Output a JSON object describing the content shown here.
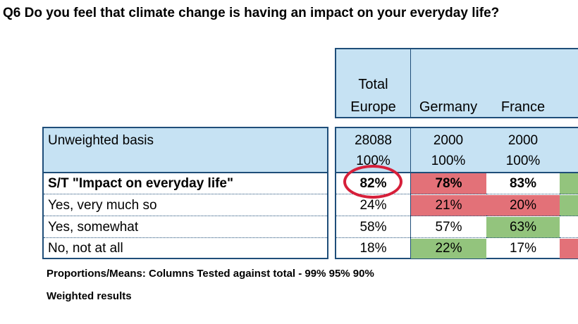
{
  "title": "Q6 Do you feel that climate change is having an impact on your everyday life?",
  "columns": [
    {
      "line1": "Total",
      "line2": "Europe"
    },
    {
      "line1": "",
      "line2": "Germany"
    },
    {
      "line1": "",
      "line2": "France"
    }
  ],
  "basis": {
    "label": "Unweighted basis",
    "counts": [
      "28088",
      "2000",
      "2000"
    ],
    "percents": [
      "100%",
      "100%",
      "100%"
    ]
  },
  "rows": [
    {
      "label": "S/T \"Impact on everyday life\"",
      "values": [
        "82%",
        "78%",
        "83%"
      ],
      "bold": true,
      "highlight": [
        "none",
        "red",
        "none",
        "green"
      ]
    },
    {
      "label": "Yes, very much so",
      "values": [
        "24%",
        "21%",
        "20%"
      ],
      "highlight": [
        "none",
        "red",
        "red",
        "green"
      ]
    },
    {
      "label": "Yes, somewhat",
      "values": [
        "58%",
        "57%",
        "63%"
      ],
      "highlight": [
        "none",
        "none",
        "green",
        "none"
      ]
    },
    {
      "label": "No, not at all",
      "values": [
        "18%",
        "22%",
        "17%"
      ],
      "highlight": [
        "none",
        "green",
        "none",
        "red"
      ]
    }
  ],
  "notes": {
    "significance": "Proportions/Means: Columns Tested against total - 99% 95% 90%",
    "weighting": "Weighted results"
  },
  "colors": {
    "significant_lower": "#e37178",
    "significant_higher": "#93c47d",
    "header_bg": "#c6e2f3",
    "circle": "#d61f3a"
  }
}
